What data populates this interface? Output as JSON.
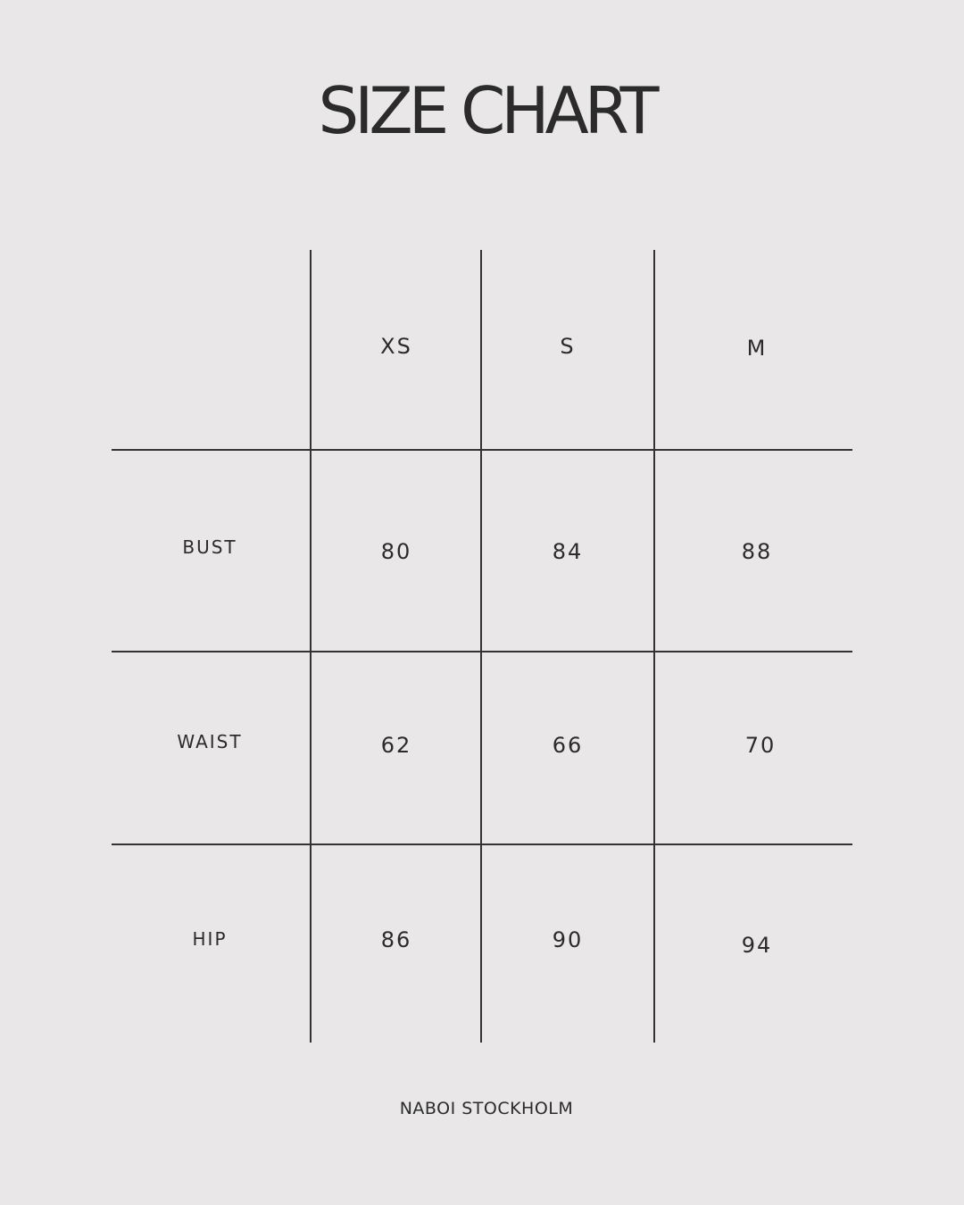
{
  "title": "SIZE CHART",
  "table": {
    "columns": [
      "XS",
      "S",
      "M"
    ],
    "rows": [
      {
        "label": "BUST",
        "values": [
          "80",
          "84",
          "88"
        ]
      },
      {
        "label": "WAIST",
        "values": [
          "62",
          "66",
          "70"
        ]
      },
      {
        "label": "HIP",
        "values": [
          "86",
          "90",
          "94"
        ]
      }
    ]
  },
  "footer": "NABOI STOCKHOLM",
  "colors": {
    "background": "#e9e7e8",
    "text": "#2b2b2b",
    "lines": "#333333"
  }
}
